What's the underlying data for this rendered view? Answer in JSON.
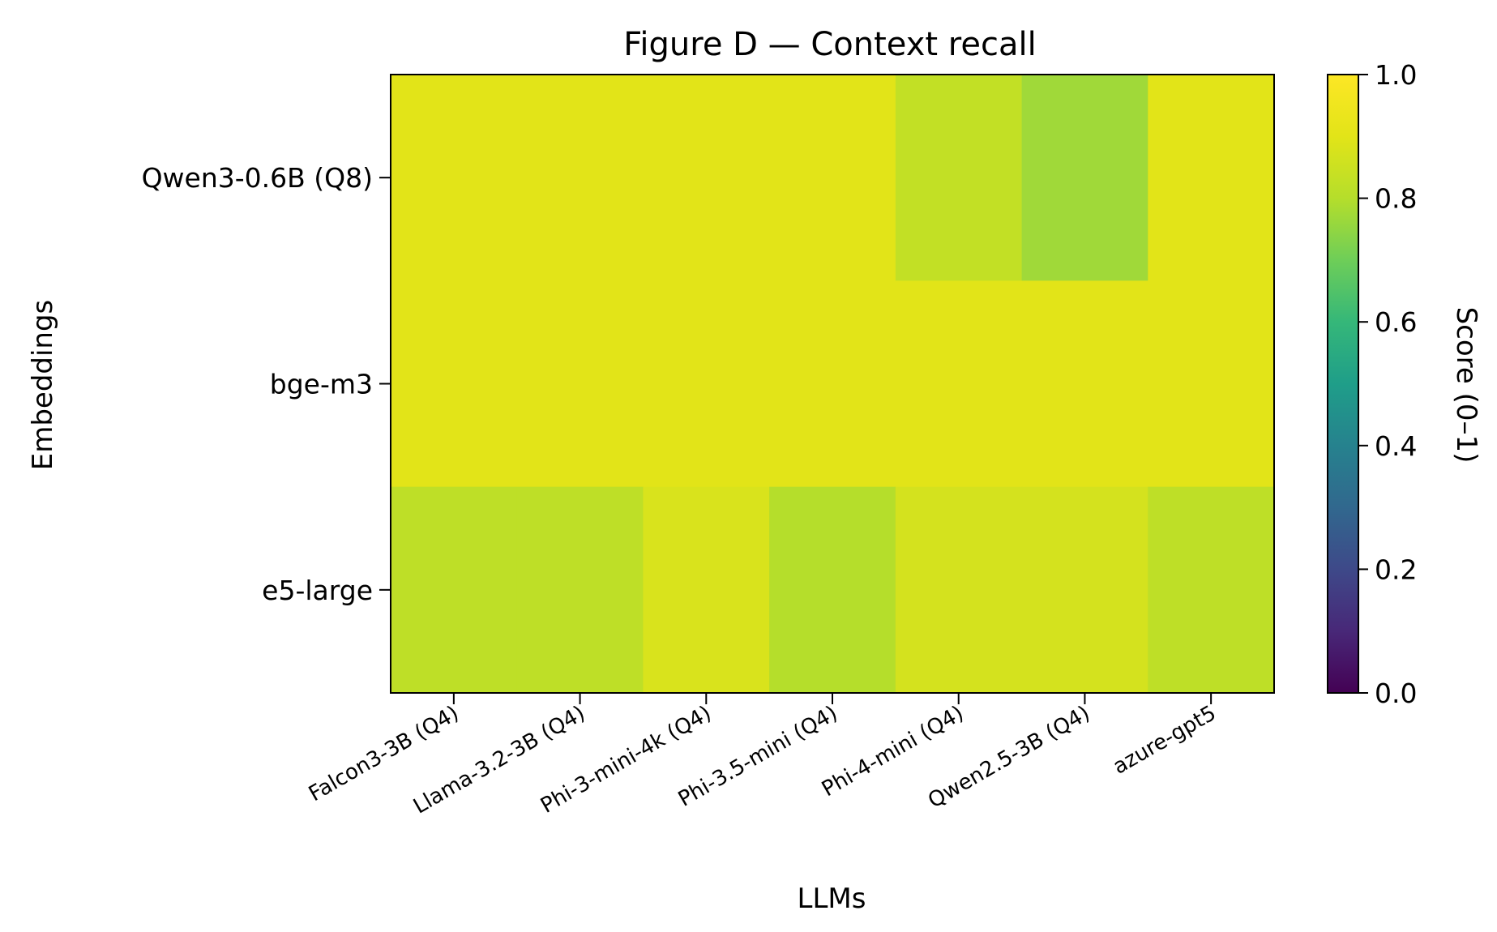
{
  "chart_data": {
    "type": "heatmap",
    "title": "Figure D — Context recall",
    "xlabel": "LLMs",
    "ylabel": "Embeddings",
    "x_categories": [
      "Falcon3-3B (Q4)",
      "Llama-3.2-3B (Q4)",
      "Phi-3-mini-4k (Q4)",
      "Phi-3.5-mini (Q4)",
      "Phi-4-mini (Q4)",
      "Qwen2.5-3B (Q4)",
      "azure-gpt5"
    ],
    "y_categories": [
      "Qwen3-0.6B (Q8)",
      "bge-m3",
      "e5-large"
    ],
    "values": [
      [
        0.9,
        0.9,
        0.9,
        0.9,
        0.83,
        0.77,
        0.9
      ],
      [
        0.9,
        0.9,
        0.9,
        0.9,
        0.9,
        0.9,
        0.9
      ],
      [
        0.82,
        0.82,
        0.88,
        0.8,
        0.87,
        0.87,
        0.82
      ]
    ],
    "colormap": "viridis",
    "colorbar": {
      "label": "Score (0–1)",
      "range": [
        0,
        1
      ],
      "ticks": [
        "0.0",
        "0.2",
        "0.4",
        "0.6",
        "0.8",
        "1.0"
      ]
    },
    "grid": false
  }
}
